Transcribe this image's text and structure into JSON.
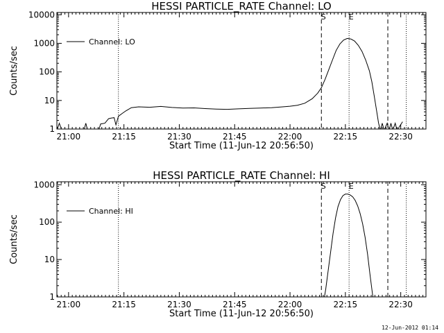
{
  "footer": {
    "timestamp": "12-Jun-2012 01:14"
  },
  "chart_data": [
    {
      "type": "line",
      "title": "HESSI PARTICLE_RATE Channel: LO",
      "xlabel": "Start Time (11-Jun-12 20:56:50)",
      "ylabel": "Counts/sec",
      "y_scale": "log",
      "xlim": [
        "20:56:50",
        "22:36:50"
      ],
      "ylim": [
        1,
        12000
      ],
      "x_ticks": [
        "21:00",
        "21:15",
        "21:30",
        "21:45",
        "22:00",
        "22:15",
        "22:30"
      ],
      "y_ticks": [
        "1",
        "10",
        "100",
        "1000",
        "10000"
      ],
      "legend": {
        "position": "top-left",
        "entries": [
          "Channel: LO"
        ]
      },
      "markers": [
        {
          "time": "21:13:30",
          "style": "dotted",
          "label": ""
        },
        {
          "time": "22:08:30",
          "style": "dashed",
          "label": "S"
        },
        {
          "time": "22:16:00",
          "style": "dotted",
          "label": "E"
        },
        {
          "time": "22:26:30",
          "style": "dashed",
          "label": ""
        },
        {
          "time": "22:31:30",
          "style": "dotted",
          "label": ""
        }
      ],
      "series": [
        {
          "name": "Channel: LO",
          "points": [
            [
              "20:56:50",
              0.9
            ],
            [
              "20:57:30",
              1.6
            ],
            [
              "20:58:10",
              0.9
            ],
            [
              "21:04:10",
              0.9
            ],
            [
              "21:04:40",
              1.6
            ],
            [
              "21:05:10",
              0.9
            ],
            [
              "21:08:10",
              0.9
            ],
            [
              "21:08:40",
              1.5
            ],
            [
              "21:09:50",
              1.6
            ],
            [
              "21:10:50",
              2.3
            ],
            [
              "21:11:30",
              2.4
            ],
            [
              "21:12:20",
              2.5
            ],
            [
              "21:12:50",
              1.4
            ],
            [
              "21:13:30",
              2.8
            ],
            [
              "21:14:30",
              3.5
            ],
            [
              "21:15:30",
              4.3
            ],
            [
              "21:17:00",
              5.6
            ],
            [
              "21:19:00",
              6.0
            ],
            [
              "21:22:00",
              5.8
            ],
            [
              "21:25:00",
              6.2
            ],
            [
              "21:28:00",
              5.7
            ],
            [
              "21:31:00",
              5.4
            ],
            [
              "21:34:00",
              5.5
            ],
            [
              "21:37:00",
              5.2
            ],
            [
              "21:40:00",
              5.0
            ],
            [
              "21:43:00",
              4.9
            ],
            [
              "21:46:00",
              5.1
            ],
            [
              "21:49:00",
              5.3
            ],
            [
              "21:52:00",
              5.4
            ],
            [
              "21:55:00",
              5.6
            ],
            [
              "21:58:00",
              6.0
            ],
            [
              "22:00:00",
              6.3
            ],
            [
              "22:02:00",
              6.8
            ],
            [
              "22:04:00",
              8.0
            ],
            [
              "22:06:00",
              11.5
            ],
            [
              "22:07:30",
              18
            ],
            [
              "22:08:30",
              28
            ],
            [
              "22:09:30",
              55
            ],
            [
              "22:10:30",
              120
            ],
            [
              "22:11:30",
              260
            ],
            [
              "22:12:30",
              560
            ],
            [
              "22:13:30",
              950
            ],
            [
              "22:14:30",
              1300
            ],
            [
              "22:15:30",
              1480
            ],
            [
              "22:16:30",
              1420
            ],
            [
              "22:17:30",
              1200
            ],
            [
              "22:18:30",
              850
            ],
            [
              "22:19:30",
              520
            ],
            [
              "22:20:30",
              260
            ],
            [
              "22:21:30",
              110
            ],
            [
              "22:22:10",
              45
            ],
            [
              "22:22:50",
              14
            ],
            [
              "22:23:30",
              4
            ],
            [
              "22:24:00",
              1.6
            ],
            [
              "22:24:30",
              0.9
            ],
            [
              "22:25:00",
              1.6
            ],
            [
              "22:25:30",
              0.9
            ],
            [
              "22:26:20",
              1.6
            ],
            [
              "22:26:50",
              0.9
            ],
            [
              "22:27:20",
              1.6
            ],
            [
              "22:27:50",
              0.9
            ],
            [
              "22:28:30",
              1.6
            ],
            [
              "22:29:00",
              0.9
            ],
            [
              "22:30:30",
              1.8
            ]
          ]
        }
      ]
    },
    {
      "type": "line",
      "title": "HESSI PARTICLE_RATE Channel: HI",
      "xlabel": "Start Time (11-Jun-12 20:56:50)",
      "ylabel": "Counts/sec",
      "y_scale": "log",
      "xlim": [
        "20:56:50",
        "22:36:50"
      ],
      "ylim": [
        1,
        1200
      ],
      "x_ticks": [
        "21:00",
        "21:15",
        "21:30",
        "21:45",
        "22:00",
        "22:15",
        "22:30"
      ],
      "y_ticks": [
        "1",
        "10",
        "100",
        "1000"
      ],
      "legend": {
        "position": "top-left",
        "entries": [
          "Channel: HI"
        ]
      },
      "markers": [
        {
          "time": "21:13:30",
          "style": "dotted",
          "label": ""
        },
        {
          "time": "22:08:30",
          "style": "dashed",
          "label": "S"
        },
        {
          "time": "22:16:00",
          "style": "dotted",
          "label": "E"
        },
        {
          "time": "22:26:30",
          "style": "dashed",
          "label": ""
        },
        {
          "time": "22:31:30",
          "style": "dotted",
          "label": ""
        }
      ],
      "series": [
        {
          "name": "Channel: HI",
          "points": [
            [
              "22:09:10",
              0.8
            ],
            [
              "22:09:40",
              1.6
            ],
            [
              "22:10:20",
              5
            ],
            [
              "22:11:00",
              16
            ],
            [
              "22:11:40",
              50
            ],
            [
              "22:12:20",
              130
            ],
            [
              "22:13:00",
              260
            ],
            [
              "22:13:40",
              400
            ],
            [
              "22:14:20",
              510
            ],
            [
              "22:15:00",
              560
            ],
            [
              "22:15:40",
              560
            ],
            [
              "22:16:20",
              530
            ],
            [
              "22:17:00",
              470
            ],
            [
              "22:17:40",
              380
            ],
            [
              "22:18:20",
              270
            ],
            [
              "22:19:00",
              170
            ],
            [
              "22:19:40",
              90
            ],
            [
              "22:20:20",
              40
            ],
            [
              "22:21:00",
              14
            ],
            [
              "22:21:40",
              4
            ],
            [
              "22:22:20",
              1.2
            ],
            [
              "22:22:40",
              0.8
            ]
          ]
        }
      ]
    }
  ]
}
